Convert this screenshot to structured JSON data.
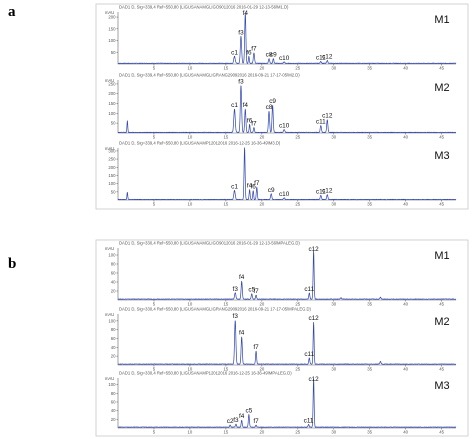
{
  "figure": {
    "panel_a_label": "a",
    "panel_b_label": "b"
  },
  "chart_data": [
    {
      "panel": "a",
      "type": "line",
      "x_ticks": [
        5,
        10,
        15,
        20,
        25,
        30,
        35,
        40,
        45
      ],
      "x_range": [
        0,
        47
      ],
      "traces": [
        {
          "name": "M1",
          "header": "DAD1 D, Sig=339,4 Ref=550,80 (LIGUSANAMGLIGO9012016 2016-01-29 12-13-56\\M1.D)",
          "y_unit": "mAU",
          "y_ticks": [
            50,
            100,
            150,
            200
          ],
          "y_range": [
            0,
            230
          ],
          "baseline": 3,
          "peaks": [
            {
              "label": "c1",
              "rt": 16.2,
              "h": 30,
              "w": 0.22
            },
            {
              "label": "f3",
              "rt": 17.1,
              "h": 115,
              "w": 0.2
            },
            {
              "label": "f4",
              "rt": 17.7,
              "h": 215,
              "w": 0.18
            },
            {
              "label": "f6",
              "rt": 18.2,
              "h": 30,
              "w": 0.14
            },
            {
              "label": "f7",
              "rt": 18.9,
              "h": 45,
              "w": 0.18
            },
            {
              "label": "c8",
              "rt": 21.0,
              "h": 20,
              "w": 0.18
            },
            {
              "label": "c9",
              "rt": 21.6,
              "h": 20,
              "w": 0.16
            },
            {
              "label": "c10",
              "rt": 23.1,
              "h": 6,
              "w": 0.18
            },
            {
              "label": "c11",
              "rt": 28.2,
              "h": 8,
              "w": 0.18
            },
            {
              "label": "c12",
              "rt": 29.1,
              "h": 12,
              "w": 0.18
            }
          ]
        },
        {
          "name": "M2",
          "header": "DAD1 D, Sig=339,4 Ref=550,80 (LIGUSANAMGLIGRANG29092016 2016-09-21 17-17-05\\M2.D)",
          "y_unit": "mAU",
          "y_ticks": [
            50,
            100,
            150,
            200,
            250
          ],
          "y_range": [
            0,
            280
          ],
          "baseline": 3,
          "peaks": [
            {
              "label": "",
              "rt": 1.3,
              "h": 60,
              "w": 0.12
            },
            {
              "label": "c1",
              "rt": 16.2,
              "h": 120,
              "w": 0.22
            },
            {
              "label": "f3",
              "rt": 17.1,
              "h": 240,
              "w": 0.2
            },
            {
              "label": "f4",
              "rt": 17.7,
              "h": 120,
              "w": 0.18
            },
            {
              "label": "f6",
              "rt": 18.3,
              "h": 40,
              "w": 0.14
            },
            {
              "label": "f7",
              "rt": 18.9,
              "h": 25,
              "w": 0.16
            },
            {
              "label": "c8",
              "rt": 21.0,
              "h": 110,
              "w": 0.18
            },
            {
              "label": "c9",
              "rt": 21.5,
              "h": 140,
              "w": 0.18
            },
            {
              "label": "c10",
              "rt": 23.1,
              "h": 15,
              "w": 0.2
            },
            {
              "label": "c11",
              "rt": 28.2,
              "h": 35,
              "w": 0.18
            },
            {
              "label": "c12",
              "rt": 29.1,
              "h": 65,
              "w": 0.18
            }
          ]
        },
        {
          "name": "M3",
          "header": "DAD1 D, Sig=339,4 Ref=550,80 (LIGUSANAMP12012016 2016-12-25 16-36-49\\M3.D)",
          "y_unit": "mAU",
          "y_ticks": [
            50,
            100,
            150,
            200,
            250,
            300
          ],
          "y_range": [
            0,
            330
          ],
          "baseline": 3,
          "peaks": [
            {
              "label": "",
              "rt": 1.3,
              "h": 45,
              "w": 0.12
            },
            {
              "label": "c1",
              "rt": 16.2,
              "h": 55,
              "w": 0.22
            },
            {
              "label": "",
              "rt": 17.6,
              "h": 320,
              "w": 0.16
            },
            {
              "label": "f4",
              "rt": 18.3,
              "h": 60,
              "w": 0.15
            },
            {
              "label": "f6",
              "rt": 18.8,
              "h": 55,
              "w": 0.14
            },
            {
              "label": "f7",
              "rt": 19.3,
              "h": 75,
              "w": 0.16
            },
            {
              "label": "c9",
              "rt": 21.3,
              "h": 35,
              "w": 0.18
            },
            {
              "label": "c10",
              "rt": 23.1,
              "h": 10,
              "w": 0.18
            },
            {
              "label": "c11",
              "rt": 28.2,
              "h": 25,
              "w": 0.18
            },
            {
              "label": "c12",
              "rt": 29.1,
              "h": 30,
              "w": 0.18
            }
          ]
        }
      ]
    },
    {
      "panel": "b",
      "type": "line",
      "x_ticks": [
        5,
        10,
        15,
        20,
        25,
        30,
        35,
        40,
        45
      ],
      "x_range": [
        0,
        47
      ],
      "traces": [
        {
          "name": "M1",
          "header": "DAD1 D, Sig=330,4 Ref=550,80 (LIGUSANAMGLIGO9012016 2016-01-29 12-13-56\\MPALEG.D)",
          "y_unit": "mAU",
          "y_ticks": [
            20,
            40,
            60,
            80,
            100
          ],
          "y_range": [
            0,
            120
          ],
          "baseline": 2,
          "peaks": [
            {
              "label": "f3",
              "rt": 16.3,
              "h": 14,
              "w": 0.2
            },
            {
              "label": "f4",
              "rt": 17.2,
              "h": 40,
              "w": 0.18
            },
            {
              "label": "c5",
              "rt": 18.6,
              "h": 12,
              "w": 0.16
            },
            {
              "label": "f7",
              "rt": 19.2,
              "h": 9,
              "w": 0.16
            },
            {
              "label": "c11",
              "rt": 26.6,
              "h": 14,
              "w": 0.16
            },
            {
              "label": "c12",
              "rt": 27.2,
              "h": 108,
              "w": 0.15
            },
            {
              "label": "",
              "rt": 31.0,
              "h": 3,
              "w": 0.16
            },
            {
              "label": "",
              "rt": 36.5,
              "h": 4,
              "w": 0.16
            }
          ]
        },
        {
          "name": "M2",
          "header": "DAD1 D, Sig=330,4 Ref=550,80 (LIGUSANAMGLIGRANG29092016 2016-09-21 17-17-05\\MPALEG.D)",
          "y_unit": "mAU",
          "y_ticks": [
            20,
            40,
            60,
            80,
            100
          ],
          "y_range": [
            0,
            120
          ],
          "baseline": 2,
          "peaks": [
            {
              "label": "f3",
              "rt": 16.3,
              "h": 100,
              "w": 0.2
            },
            {
              "label": "f4",
              "rt": 17.2,
              "h": 62,
              "w": 0.18
            },
            {
              "label": "f7",
              "rt": 19.2,
              "h": 30,
              "w": 0.16
            },
            {
              "label": "c11",
              "rt": 26.6,
              "h": 14,
              "w": 0.16
            },
            {
              "label": "c12",
              "rt": 27.2,
              "h": 95,
              "w": 0.15
            },
            {
              "label": "",
              "rt": 36.5,
              "h": 6,
              "w": 0.16
            }
          ]
        },
        {
          "name": "M3",
          "header": "DAD1 D, Sig=330,4 Ref=550,80 (LIGUSANAMP12012016 2016-12-25 16-36-49\\MPALEG.D)",
          "y_unit": "mAU",
          "y_ticks": [
            20,
            40,
            60,
            80,
            100
          ],
          "y_range": [
            0,
            120
          ],
          "baseline": 2,
          "peaks": [
            {
              "label": "c2",
              "rt": 15.6,
              "h": 5,
              "w": 0.16
            },
            {
              "label": "f3",
              "rt": 16.4,
              "h": 7,
              "w": 0.16
            },
            {
              "label": "f4",
              "rt": 17.2,
              "h": 16,
              "w": 0.16
            },
            {
              "label": "c5",
              "rt": 18.2,
              "h": 29,
              "w": 0.16
            },
            {
              "label": "f7",
              "rt": 19.2,
              "h": 5,
              "w": 0.16
            },
            {
              "label": "c11",
              "rt": 26.5,
              "h": 6,
              "w": 0.16
            },
            {
              "label": "c12",
              "rt": 27.2,
              "h": 112,
              "w": 0.15
            }
          ]
        }
      ]
    }
  ]
}
